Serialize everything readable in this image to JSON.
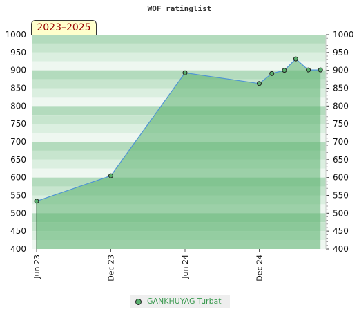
{
  "title": "WOF ratinglist",
  "period_label": "2023–2025",
  "legend": {
    "player": "GANKHUYAG Turbat"
  },
  "colors": {
    "line": "#4f94d4",
    "area": "#5ab06e",
    "marker": "#5ab06e"
  },
  "chart_data": {
    "type": "area",
    "title": "WOF ratinglist",
    "ylim": [
      400,
      1000
    ],
    "y_ticks": [
      400,
      450,
      500,
      550,
      600,
      650,
      700,
      750,
      800,
      850,
      900,
      950,
      1000
    ],
    "x_ticks": [
      "Jun 23",
      "Dec 23",
      "Jun 24",
      "Dec 24"
    ],
    "series": [
      {
        "name": "GANKHUYAG Turbat",
        "x": [
          "2023-06",
          "2023-12",
          "2024-06",
          "2024-12",
          "2025-01",
          "2025-02",
          "2025-03",
          "2025-04",
          "2025-05"
        ],
        "values": [
          534,
          605,
          893,
          863,
          891,
          900,
          932,
          901,
          901
        ]
      }
    ],
    "grid": true,
    "legend_position": "bottom"
  }
}
